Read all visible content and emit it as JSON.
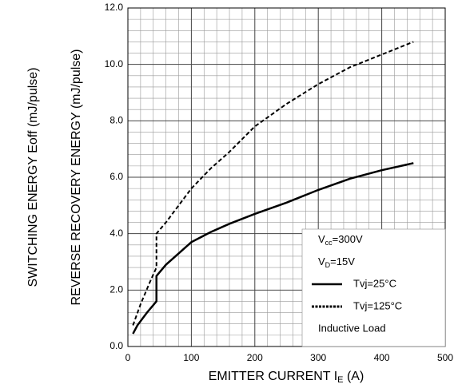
{
  "chart_data": {
    "type": "line",
    "xlabel": [
      "EMITTER CURRENT I",
      "E",
      " (A)"
    ],
    "ylabel": "REVERSE RECOVERY ENERGY (mJ/pulse)",
    "ylabel2": "SWITCHING ENERGY Eoff (mJ/pulse)",
    "xlim": [
      0,
      500
    ],
    "ylim": [
      0,
      12
    ],
    "xticks": [
      0,
      100,
      200,
      300,
      400,
      500
    ],
    "yticks": [
      {
        "value": 0,
        "label": "0.0"
      },
      {
        "value": 2,
        "label": "2.0"
      },
      {
        "value": 4,
        "label": "4.0"
      },
      {
        "value": 6,
        "label": "6.0"
      },
      {
        "value": 8,
        "label": "8.0"
      },
      {
        "value": 10,
        "label": "10.0"
      },
      {
        "value": 12,
        "label": "12.0"
      }
    ],
    "xgrid_minor": [
      20,
      40,
      60,
      80,
      120,
      140,
      160,
      180,
      220,
      240,
      260,
      280,
      320,
      340,
      360,
      380,
      420,
      440,
      460,
      480
    ],
    "ygrid_minor": [
      0.4,
      0.8,
      1.2,
      1.6,
      2.4,
      2.8,
      3.2,
      3.6,
      4.4,
      4.8,
      5.2,
      5.6,
      6.4,
      6.8,
      7.2,
      7.6,
      8.4,
      8.8,
      9.2,
      9.6,
      10.4,
      10.8,
      11.2,
      11.6
    ],
    "grid": true,
    "annotations": [
      [
        "V",
        "cc",
        "=300V"
      ],
      [
        "V",
        "D",
        "=15V"
      ]
    ],
    "note": "Inductive Load",
    "series": [
      {
        "name": "Tvj=25°C",
        "color": "#000000",
        "dash": "solid",
        "x": [
          8,
          15,
          30,
          45,
          45,
          60,
          80,
          100,
          130,
          160,
          200,
          250,
          300,
          350,
          400,
          450
        ],
        "values": [
          0.45,
          0.75,
          1.2,
          1.6,
          2.5,
          2.9,
          3.3,
          3.7,
          4.05,
          4.35,
          4.7,
          5.1,
          5.55,
          5.95,
          6.25,
          6.5
        ]
      },
      {
        "name": "Tvj=125°C",
        "color": "#000000",
        "dash": "dashed",
        "x": [
          8,
          20,
          35,
          45,
          45,
          60,
          80,
          100,
          130,
          160,
          200,
          250,
          300,
          350,
          400,
          450
        ],
        "values": [
          0.75,
          1.5,
          2.3,
          2.8,
          4.0,
          4.4,
          5.0,
          5.6,
          6.3,
          6.9,
          7.8,
          8.6,
          9.3,
          9.9,
          10.35,
          10.8
        ]
      }
    ]
  }
}
